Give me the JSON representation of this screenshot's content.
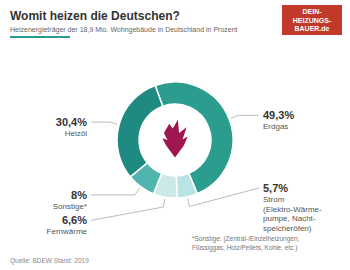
{
  "chart_data": {
    "type": "donut",
    "title": "Womit heizen die Deutschen?",
    "subtitle": "Heizenergieträger der 18,9 Mio. Wohngebäude in Deutschland in Prozent",
    "source": "Quelle: BDEW Stand: 2019",
    "footnote": "*Sonstige: (Zentral-/Einzelheizungen,\nFlüssiggas, Holz/Pellets, Kohle, etc.)",
    "annotations": [
      "DEIN-\nHEIZUNGS-\nBAUER.de"
    ],
    "categories": [
      "Erdgas",
      "Strom\n(Elektro-Wärme-\npumpe, Nacht-\nspeicheröfen)",
      "Fernwärme",
      "Sonstige*",
      "Heizöl"
    ],
    "values": [
      49.3,
      5.7,
      6.6,
      8.0,
      30.4
    ],
    "value_labels": [
      "49,3%",
      "5,7%",
      "6,6%",
      "8%",
      "30,4%"
    ],
    "colors": [
      "#2a9d8f",
      "#b8e4e4",
      "#cce8e8",
      "#50b5af",
      "#1e8a80"
    ],
    "data_labels": true
  }
}
